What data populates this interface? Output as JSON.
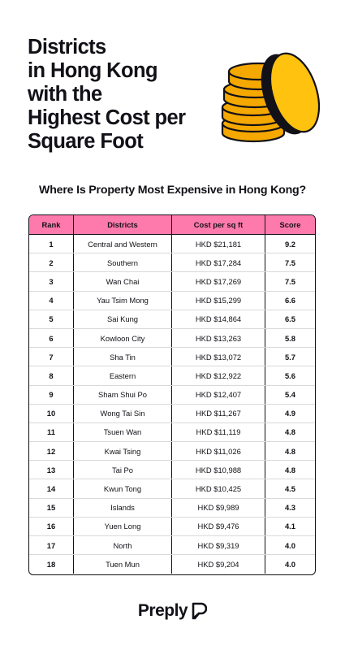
{
  "title_lines": [
    "Districts",
    "in Hong Kong",
    "with the",
    "Highest Cost per",
    "Square Foot"
  ],
  "subtitle": "Where Is Property Most Expensive in Hong Kong?",
  "colors": {
    "header_bg": "#ff7aac",
    "text": "#121117",
    "coin_gold": "#f5a800",
    "coin_yellow": "#ffc20e"
  },
  "table": {
    "headers": [
      "Rank",
      "Districts",
      "Cost per sq ft",
      "Score"
    ],
    "rows": [
      {
        "rank": "1",
        "district": "Central and Western",
        "cost": "HKD $21,181",
        "score": "9.2"
      },
      {
        "rank": "2",
        "district": "Southern",
        "cost": "HKD $17,284",
        "score": "7.5"
      },
      {
        "rank": "3",
        "district": "Wan Chai",
        "cost": "HKD $17,269",
        "score": "7.5"
      },
      {
        "rank": "4",
        "district": "Yau Tsim Mong",
        "cost": "HKD $15,299",
        "score": "6.6"
      },
      {
        "rank": "5",
        "district": "Sai Kung",
        "cost": "HKD $14,864",
        "score": "6.5"
      },
      {
        "rank": "6",
        "district": "Kowloon City",
        "cost": "HKD $13,263",
        "score": "5.8"
      },
      {
        "rank": "7",
        "district": "Sha Tin",
        "cost": "HKD $13,072",
        "score": "5.7"
      },
      {
        "rank": "8",
        "district": "Eastern",
        "cost": "HKD $12,922",
        "score": "5.6"
      },
      {
        "rank": "9",
        "district": "Sham Shui Po",
        "cost": "HKD $12,407",
        "score": "5.4"
      },
      {
        "rank": "10",
        "district": "Wong Tai Sin",
        "cost": "HKD $11,267",
        "score": "4.9"
      },
      {
        "rank": "11",
        "district": "Tsuen Wan",
        "cost": "HKD $11,119",
        "score": "4.8"
      },
      {
        "rank": "12",
        "district": "Kwai Tsing",
        "cost": "HKD $11,026",
        "score": "4.8"
      },
      {
        "rank": "13",
        "district": "Tai Po",
        "cost": "HKD $10,988",
        "score": "4.8"
      },
      {
        "rank": "14",
        "district": "Kwun Tong",
        "cost": "HKD $10,425",
        "score": "4.5"
      },
      {
        "rank": "15",
        "district": "Islands",
        "cost": "HKD $9,989",
        "score": "4.3"
      },
      {
        "rank": "16",
        "district": "Yuen Long",
        "cost": "HKD $9,476",
        "score": "4.1"
      },
      {
        "rank": "17",
        "district": "North",
        "cost": "HKD $9,319",
        "score": "4.0"
      },
      {
        "rank": "18",
        "district": "Tuen Mun",
        "cost": "HKD $9,204",
        "score": "4.0"
      }
    ]
  },
  "brand": {
    "name": "Preply",
    "icon": "preply-logo-icon"
  }
}
